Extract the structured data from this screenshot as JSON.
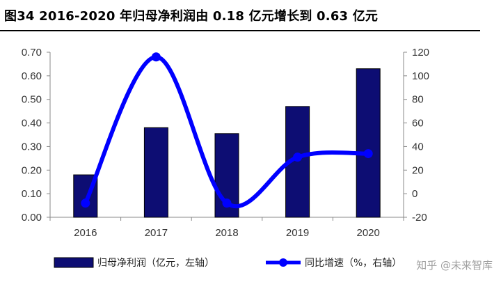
{
  "title": "图34 2016-2020 年归母净利润由 0.18 亿元增长到 0.63 亿元",
  "watermark": "知乎 @未来智库",
  "colors": {
    "bar": "#0d0d73",
    "line": "#0000ff"
  },
  "chart_data": {
    "type": "bar+line",
    "categories": [
      "2016",
      "2017",
      "2018",
      "2019",
      "2020"
    ],
    "series": [
      {
        "name": "归母净利润（亿元，左轴）",
        "type": "bar",
        "axis": "left",
        "values": [
          0.18,
          0.38,
          0.355,
          0.47,
          0.63
        ]
      },
      {
        "name": "同比增速（%，右轴）",
        "type": "line",
        "axis": "right",
        "values": [
          -8,
          116,
          -8,
          31,
          34
        ]
      }
    ],
    "y_left": {
      "min": 0,
      "max": 0.7,
      "ticks": [
        "0.00",
        "0.10",
        "0.20",
        "0.30",
        "0.40",
        "0.50",
        "0.60",
        "0.70"
      ]
    },
    "y_right": {
      "min": -20,
      "max": 120,
      "ticks": [
        "-20",
        "0",
        "20",
        "40",
        "60",
        "80",
        "100",
        "120"
      ]
    },
    "grid": false,
    "legend_position": "bottom"
  }
}
